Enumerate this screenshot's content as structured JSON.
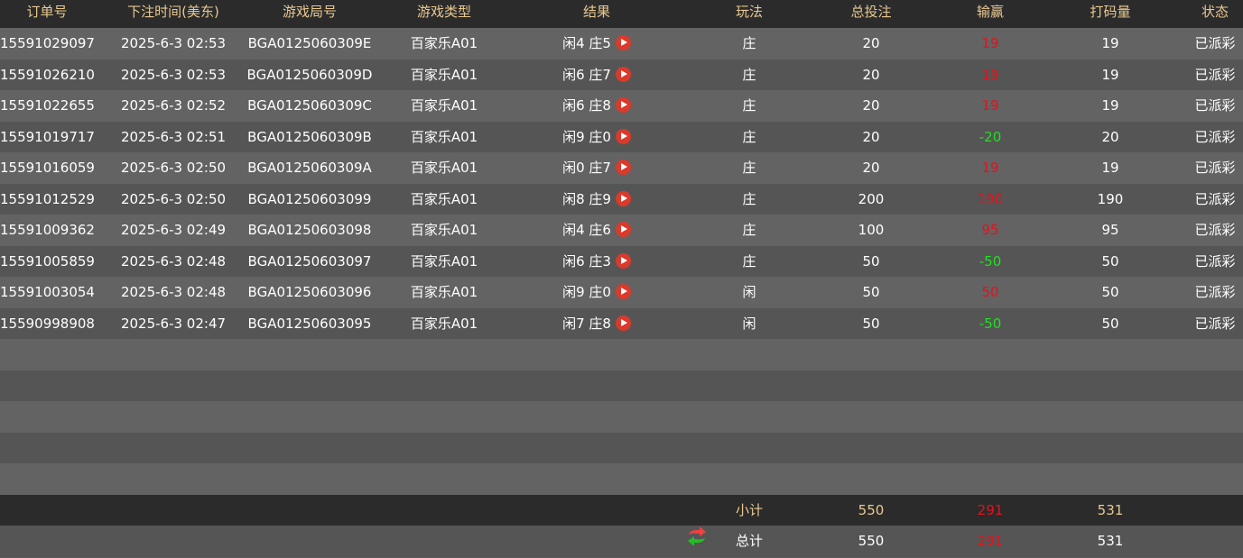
{
  "headers": [
    "订单号",
    "下注时间(美东)",
    "游戏局号",
    "游戏类型",
    "结果",
    "玩法",
    "总投注",
    "输赢",
    "打码量",
    "状态"
  ],
  "rows": [
    {
      "order": "15591029097",
      "time": "2025-6-3 02:53",
      "round": "BGA0125060309E",
      "game": "百家乐A01",
      "result": "闲4 庄5",
      "bet_type": "庄",
      "total": "20",
      "win": "19",
      "win_color": "red",
      "code": "19",
      "status": "已派彩"
    },
    {
      "order": "15591026210",
      "time": "2025-6-3 02:53",
      "round": "BGA0125060309D",
      "game": "百家乐A01",
      "result": "闲6 庄7",
      "bet_type": "庄",
      "total": "20",
      "win": "19",
      "win_color": "red",
      "code": "19",
      "status": "已派彩"
    },
    {
      "order": "15591022655",
      "time": "2025-6-3 02:52",
      "round": "BGA0125060309C",
      "game": "百家乐A01",
      "result": "闲6 庄8",
      "bet_type": "庄",
      "total": "20",
      "win": "19",
      "win_color": "red",
      "code": "19",
      "status": "已派彩"
    },
    {
      "order": "15591019717",
      "time": "2025-6-3 02:51",
      "round": "BGA0125060309B",
      "game": "百家乐A01",
      "result": "闲9 庄0",
      "bet_type": "庄",
      "total": "20",
      "win": "-20",
      "win_color": "green",
      "code": "20",
      "status": "已派彩"
    },
    {
      "order": "15591016059",
      "time": "2025-6-3 02:50",
      "round": "BGA0125060309A",
      "game": "百家乐A01",
      "result": "闲0 庄7",
      "bet_type": "庄",
      "total": "20",
      "win": "19",
      "win_color": "red",
      "code": "19",
      "status": "已派彩"
    },
    {
      "order": "15591012529",
      "time": "2025-6-3 02:50",
      "round": "BGA01250603099",
      "game": "百家乐A01",
      "result": "闲8 庄9",
      "bet_type": "庄",
      "total": "200",
      "win": "190",
      "win_color": "red",
      "code": "190",
      "status": "已派彩"
    },
    {
      "order": "15591009362",
      "time": "2025-6-3 02:49",
      "round": "BGA01250603098",
      "game": "百家乐A01",
      "result": "闲4 庄6",
      "bet_type": "庄",
      "total": "100",
      "win": "95",
      "win_color": "red",
      "code": "95",
      "status": "已派彩"
    },
    {
      "order": "15591005859",
      "time": "2025-6-3 02:48",
      "round": "BGA01250603097",
      "game": "百家乐A01",
      "result": "闲6 庄3",
      "bet_type": "庄",
      "total": "50",
      "win": "-50",
      "win_color": "green",
      "code": "50",
      "status": "已派彩"
    },
    {
      "order": "15591003054",
      "time": "2025-6-3 02:48",
      "round": "BGA01250603096",
      "game": "百家乐A01",
      "result": "闲9 庄0",
      "bet_type": "闲",
      "total": "50",
      "win": "50",
      "win_color": "red",
      "code": "50",
      "status": "已派彩"
    },
    {
      "order": "15590998908",
      "time": "2025-6-3 02:47",
      "round": "BGA01250603095",
      "game": "百家乐A01",
      "result": "闲7 庄8",
      "bet_type": "闲",
      "total": "50",
      "win": "-50",
      "win_color": "green",
      "code": "50",
      "status": "已派彩"
    }
  ],
  "subtotal": {
    "label": "小计",
    "total": "550",
    "win": "291",
    "code": "531"
  },
  "grand_total": {
    "label": "总计",
    "total": "550",
    "win": "291",
    "code": "531"
  },
  "colors": {
    "red": "#e0141e",
    "green": "#1fe01f",
    "header_text": "#e8c890"
  }
}
